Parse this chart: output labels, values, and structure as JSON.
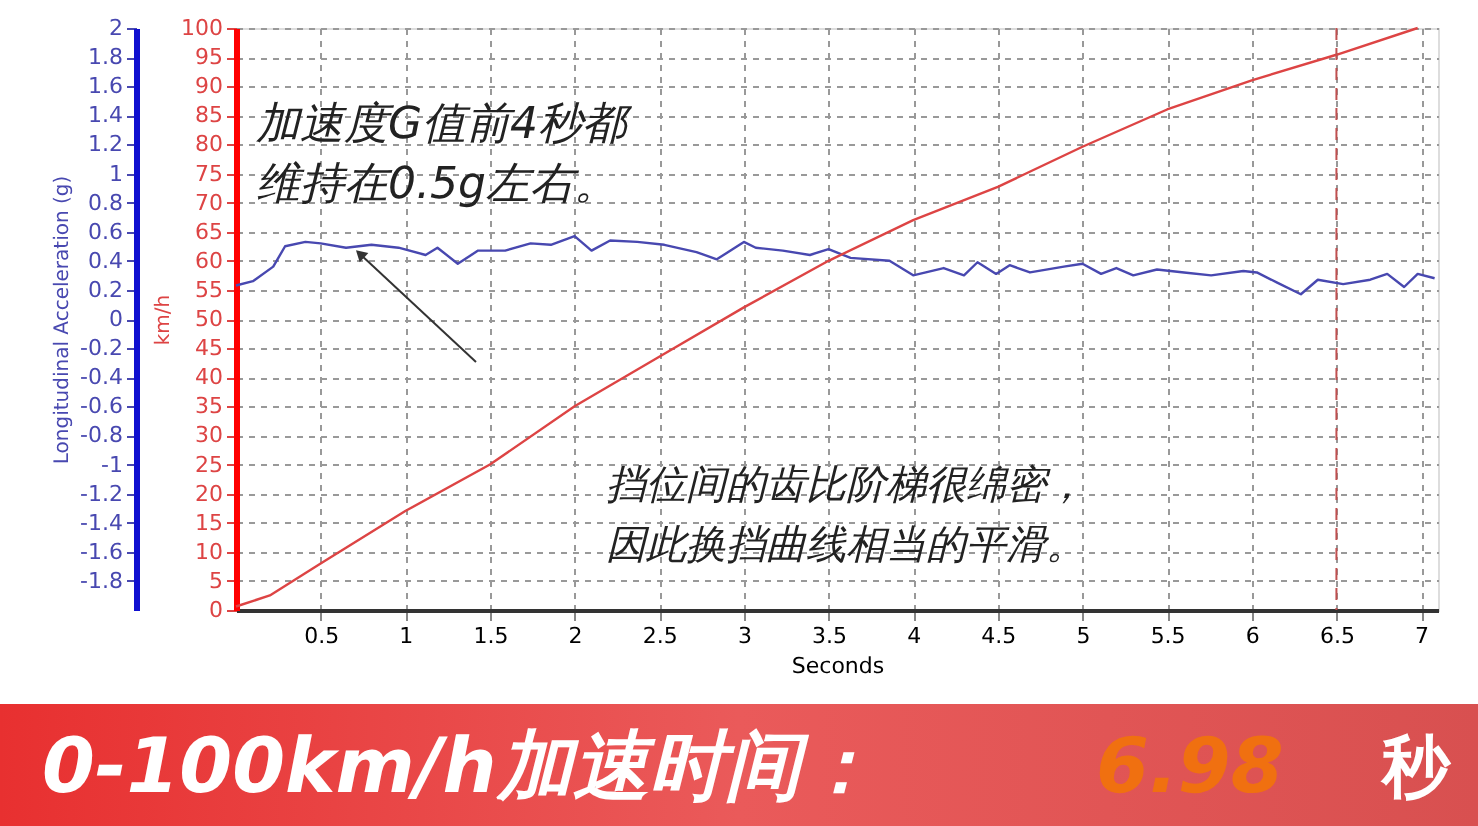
{
  "chart_data": {
    "type": "line",
    "xlabel": "Seconds",
    "ylabel": "Longitudinal Acceleration (g)",
    "y2label": "km/h",
    "xlim": [
      0,
      7.1
    ],
    "xticks": [
      0.5,
      1,
      1.5,
      2,
      2.5,
      3,
      3.5,
      4,
      4.5,
      5,
      5.5,
      6,
      6.5,
      7
    ],
    "ylim": [
      -2,
      2
    ],
    "yticks": [
      -1.8,
      -1.6,
      -1.4,
      -1.2,
      -1,
      -0.8,
      -0.6,
      -0.4,
      -0.2,
      0,
      0.2,
      0.4,
      0.6,
      0.8,
      1,
      1.2,
      1.4,
      1.6,
      1.8,
      2
    ],
    "y2lim": [
      0,
      100
    ],
    "y2ticks": [
      0,
      5,
      10,
      15,
      20,
      25,
      30,
      35,
      40,
      45,
      50,
      55,
      60,
      65,
      70,
      75,
      80,
      85,
      90,
      95,
      100
    ],
    "grid": true,
    "marker": "none",
    "line_style": "solid",
    "series": [
      {
        "color": "#4848b0",
        "x": [
          0,
          0.1,
          0.22,
          0.29,
          0.41,
          0.5,
          0.65,
          0.8,
          0.96,
          1.12,
          1.19,
          1.31,
          1.43,
          1.59,
          1.74,
          1.86,
          2.0,
          2.1,
          2.21,
          2.37,
          2.53,
          2.72,
          2.84,
          3.0,
          3.07,
          3.23,
          3.39,
          3.5,
          3.63,
          3.86,
          4.0,
          4.18,
          4.3,
          4.38,
          4.49,
          4.57,
          4.69,
          4.89,
          5.0,
          5.11,
          5.2,
          5.3,
          5.44,
          5.6,
          5.76,
          5.95,
          6.03,
          6.15,
          6.29,
          6.39,
          6.54,
          6.7,
          6.8,
          6.9,
          6.98,
          7.08
        ],
        "values": [
          0.23,
          0.26,
          0.36,
          0.5,
          0.53,
          0.52,
          0.49,
          0.51,
          0.49,
          0.44,
          0.49,
          0.38,
          0.47,
          0.47,
          0.52,
          0.51,
          0.57,
          0.47,
          0.54,
          0.53,
          0.51,
          0.46,
          0.41,
          0.53,
          0.49,
          0.47,
          0.44,
          0.48,
          0.42,
          0.4,
          0.3,
          0.35,
          0.3,
          0.39,
          0.31,
          0.37,
          0.32,
          0.36,
          0.38,
          0.31,
          0.35,
          0.3,
          0.34,
          0.32,
          0.3,
          0.33,
          0.32,
          0.25,
          0.17,
          0.27,
          0.24,
          0.27,
          0.31,
          0.22,
          0.31,
          0.28
        ]
      },
      {
        "color": "#dd4444",
        "axis": "y2",
        "x": [
          0,
          0.2,
          0.5,
          1,
          1.5,
          2,
          2.5,
          3,
          3.5,
          4,
          4.5,
          5,
          5.5,
          6,
          6.5,
          6.98
        ],
        "values": [
          0.6,
          2.5,
          8,
          17,
          25,
          35,
          43.5,
          52,
          60,
          67,
          72.7,
          79.6,
          86,
          91,
          95.4,
          100
        ]
      }
    ],
    "ref_lines": [
      {
        "axis": "x",
        "value": 6.5,
        "color": "#c05050",
        "line_style": "dashed"
      }
    ],
    "annotations": [
      "加速度G值前4秒都",
      "维持在0.5g左右。",
      "挡位间的齿比阶梯很绵密，",
      "因此换挡曲线相当的平滑。",
      "0-100km/h加速时间：",
      "6.98",
      "秒"
    ]
  }
}
